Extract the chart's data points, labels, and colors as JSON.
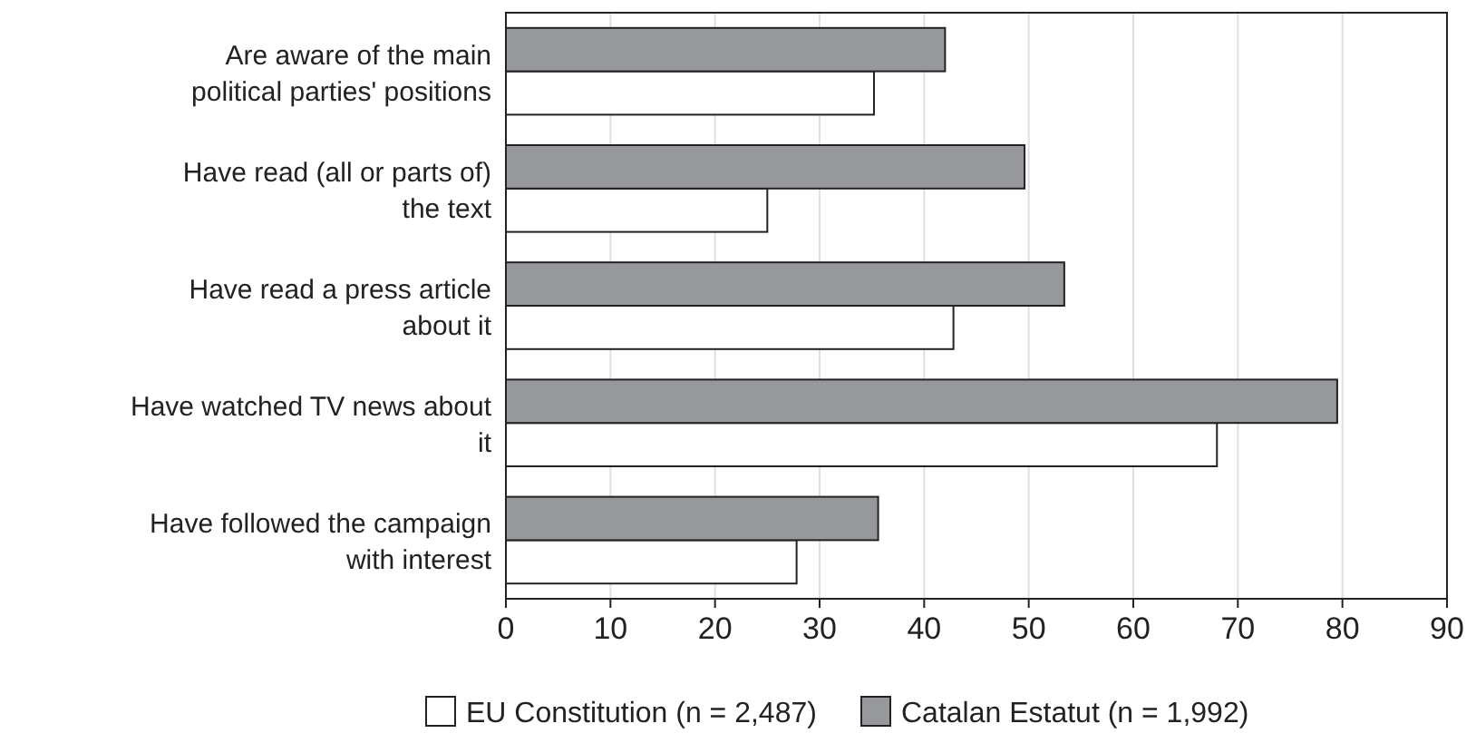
{
  "chart_data": {
    "type": "bar",
    "orientation": "horizontal",
    "categories": [
      "Are aware of the main political parties' positions",
      "Have read (all or parts of) the text",
      "Have read a press article about it",
      "Have watched TV news about it",
      "Have followed the campaign with interest"
    ],
    "series": [
      {
        "name": "EU Constitution (n = 2,487)",
        "color": "#ffffff",
        "values": [
          35.2,
          25,
          42.8,
          68,
          27.8
        ]
      },
      {
        "name": "Catalan Estatut (n = 1,992)",
        "color": "#97989c",
        "values": [
          42,
          49.6,
          53.4,
          79.5,
          35.6
        ]
      }
    ],
    "xlim": [
      0,
      90
    ],
    "xticks": [
      0,
      10,
      20,
      30,
      40,
      50,
      60,
      70,
      80,
      90
    ],
    "grid": "x",
    "legend": "bottom"
  }
}
